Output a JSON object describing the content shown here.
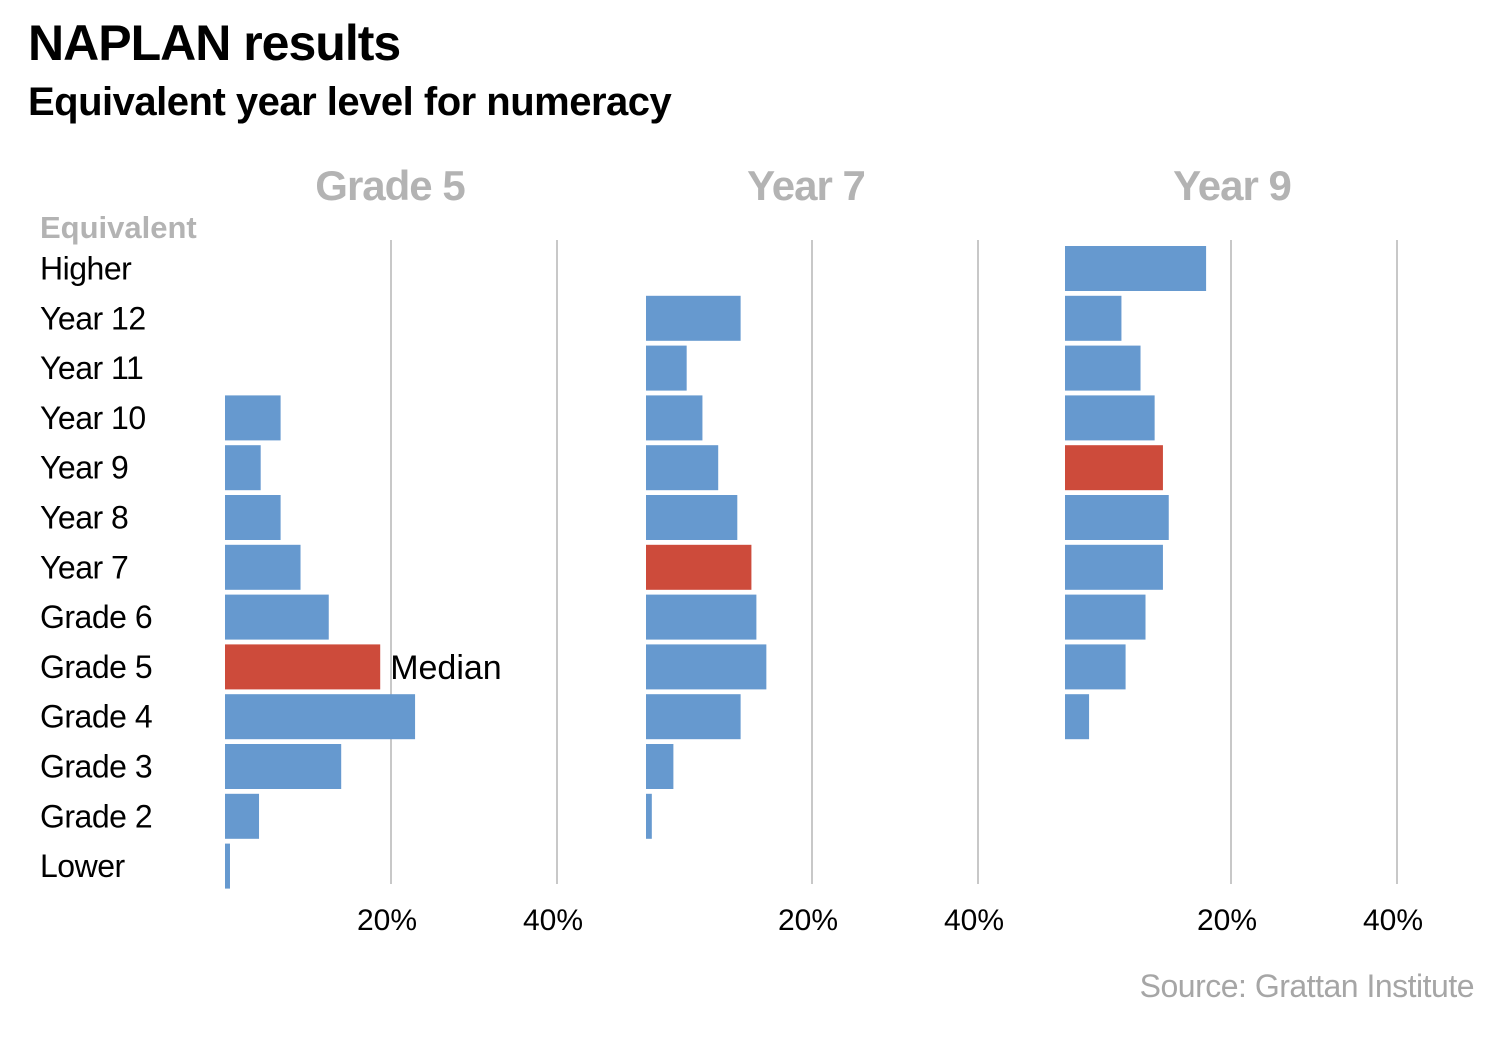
{
  "title": "NAPLAN results",
  "subtitle": "Equivalent year level for numeracy",
  "source": "Source: Grattan Institute",
  "colors": {
    "bar": "#6699cf",
    "median": "#cd4b3b",
    "panel_title": "#b3b3b3",
    "grid": "#c8c8c8"
  },
  "chart_data": {
    "type": "bar",
    "orientation": "horizontal",
    "category_header": "Equivalent",
    "categories": [
      "Higher",
      "Year 12",
      "Year 11",
      "Year 10",
      "Year 9",
      "Year 8",
      "Year 7",
      "Grade 6",
      "Grade 5",
      "Grade 4",
      "Grade 3",
      "Grade 2",
      "Lower"
    ],
    "xlim": [
      0,
      40
    ],
    "xticks": [
      20,
      40
    ],
    "xtick_labels": [
      "20%",
      "40%"
    ],
    "panels": [
      {
        "title": "Grade 5",
        "median_category": "Grade 5",
        "median_label": "Median",
        "values": [
          0,
          0,
          0,
          6.7,
          4.3,
          6.7,
          9.1,
          12.5,
          18.7,
          22.9,
          14.0,
          4.1,
          0.6
        ]
      },
      {
        "title": "Year 7",
        "median_category": "Year 7",
        "values": [
          0,
          11.4,
          4.9,
          6.8,
          8.7,
          11.0,
          12.7,
          13.3,
          14.5,
          11.4,
          3.3,
          0.7,
          0
        ]
      },
      {
        "title": "Year 9",
        "median_category": "Year 9",
        "values": [
          17.0,
          6.8,
          9.1,
          10.8,
          11.8,
          12.5,
          11.8,
          9.7,
          7.3,
          2.9,
          0,
          0,
          0
        ]
      }
    ]
  }
}
